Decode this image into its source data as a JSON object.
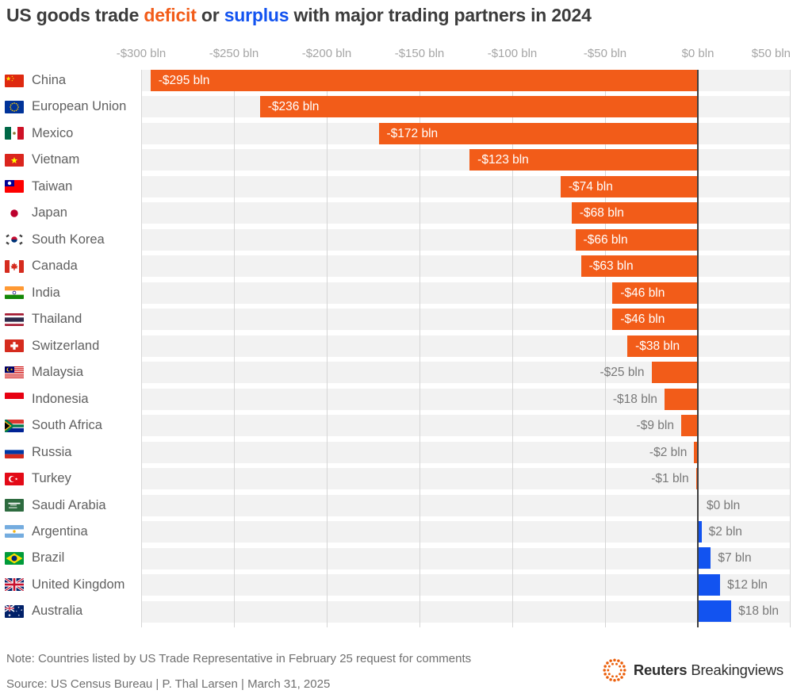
{
  "title": {
    "part1": "US goods trade ",
    "deficit": "deficit",
    "part2": " or ",
    "surplus": "surplus",
    "part3": " with major trading partners in 2024"
  },
  "colors": {
    "deficit": "#F25C19",
    "surplus": "#1253F0",
    "title_text": "#3C3C3C",
    "row_band": "#F2F2F2",
    "gridline": "#D6D6D6",
    "zero_line": "#3F3F3F",
    "tick_text": "#A5A5A5",
    "country_text": "#606060",
    "inside_label": "#FFFFFF",
    "outside_label": "#787878",
    "footer_text": "#707070",
    "logo_orange": "#EB5E0A"
  },
  "chart_data": {
    "type": "bar",
    "orientation": "horizontal",
    "title": "US goods trade deficit or surplus with major trading partners in 2024",
    "unit": "$ bln",
    "xlim": [
      -300,
      50
    ],
    "grid": "vertical",
    "ticks": [
      {
        "value": -300,
        "label": "-$300 bln"
      },
      {
        "value": -250,
        "label": "-$250 bln"
      },
      {
        "value": -200,
        "label": "-$200 bln"
      },
      {
        "value": -150,
        "label": "-$150 bln"
      },
      {
        "value": -100,
        "label": "-$100 bln"
      },
      {
        "value": -50,
        "label": "-$50 bln"
      },
      {
        "value": 0,
        "label": "$0 bln"
      },
      {
        "value": 50,
        "label": "$50 bln"
      }
    ],
    "categories": [
      "China",
      "European Union",
      "Mexico",
      "Vietnam",
      "Taiwan",
      "Japan",
      "South Korea",
      "Canada",
      "India",
      "Thailand",
      "Switzerland",
      "Malaysia",
      "Indonesia",
      "South Africa",
      "Russia",
      "Turkey",
      "Saudi Arabia",
      "Argentina",
      "Brazil",
      "United Kingdom",
      "Australia"
    ],
    "values": [
      -295,
      -236,
      -172,
      -123,
      -74,
      -68,
      -66,
      -63,
      -46,
      -46,
      -38,
      -25,
      -18,
      -9,
      -2,
      -1,
      0,
      2,
      7,
      12,
      18
    ],
    "rows": [
      {
        "country": "China",
        "flag": "cn",
        "value": -295,
        "label": "-$295 bln"
      },
      {
        "country": "European Union",
        "flag": "eu",
        "value": -236,
        "label": "-$236 bln"
      },
      {
        "country": "Mexico",
        "flag": "mx",
        "value": -172,
        "label": "-$172 bln"
      },
      {
        "country": "Vietnam",
        "flag": "vn",
        "value": -123,
        "label": "-$123 bln"
      },
      {
        "country": "Taiwan",
        "flag": "tw",
        "value": -74,
        "label": "-$74 bln"
      },
      {
        "country": "Japan",
        "flag": "jp",
        "value": -68,
        "label": "-$68 bln"
      },
      {
        "country": "South Korea",
        "flag": "kr",
        "value": -66,
        "label": "-$66 bln"
      },
      {
        "country": "Canada",
        "flag": "ca",
        "value": -63,
        "label": "-$63 bln"
      },
      {
        "country": "India",
        "flag": "in",
        "value": -46,
        "label": "-$46 bln"
      },
      {
        "country": "Thailand",
        "flag": "th",
        "value": -46,
        "label": "-$46 bln"
      },
      {
        "country": "Switzerland",
        "flag": "ch",
        "value": -38,
        "label": "-$38 bln"
      },
      {
        "country": "Malaysia",
        "flag": "my",
        "value": -25,
        "label": "-$25 bln"
      },
      {
        "country": "Indonesia",
        "flag": "id",
        "value": -18,
        "label": "-$18 bln"
      },
      {
        "country": "South Africa",
        "flag": "za",
        "value": -9,
        "label": "-$9 bln"
      },
      {
        "country": "Russia",
        "flag": "ru",
        "value": -2,
        "label": "-$2 bln"
      },
      {
        "country": "Turkey",
        "flag": "tr",
        "value": -1,
        "label": "-$1 bln"
      },
      {
        "country": "Saudi Arabia",
        "flag": "sa",
        "value": 0,
        "label": "$0 bln"
      },
      {
        "country": "Argentina",
        "flag": "ar",
        "value": 2,
        "label": "$2 bln"
      },
      {
        "country": "Brazil",
        "flag": "br",
        "value": 7,
        "label": "$7 bln"
      },
      {
        "country": "United Kingdom",
        "flag": "gb",
        "value": 12,
        "label": "$12 bln"
      },
      {
        "country": "Australia",
        "flag": "au",
        "value": 18,
        "label": "$18 bln"
      }
    ]
  },
  "footer": {
    "note": "Note: Countries listed by US Trade Representative in February 25 request for comments",
    "source": "Source: US Census Bureau | P. Thal Larsen | March 31, 2025"
  },
  "logo": {
    "brand_bold": "Reuters",
    "brand_regular": "Breakingviews"
  }
}
